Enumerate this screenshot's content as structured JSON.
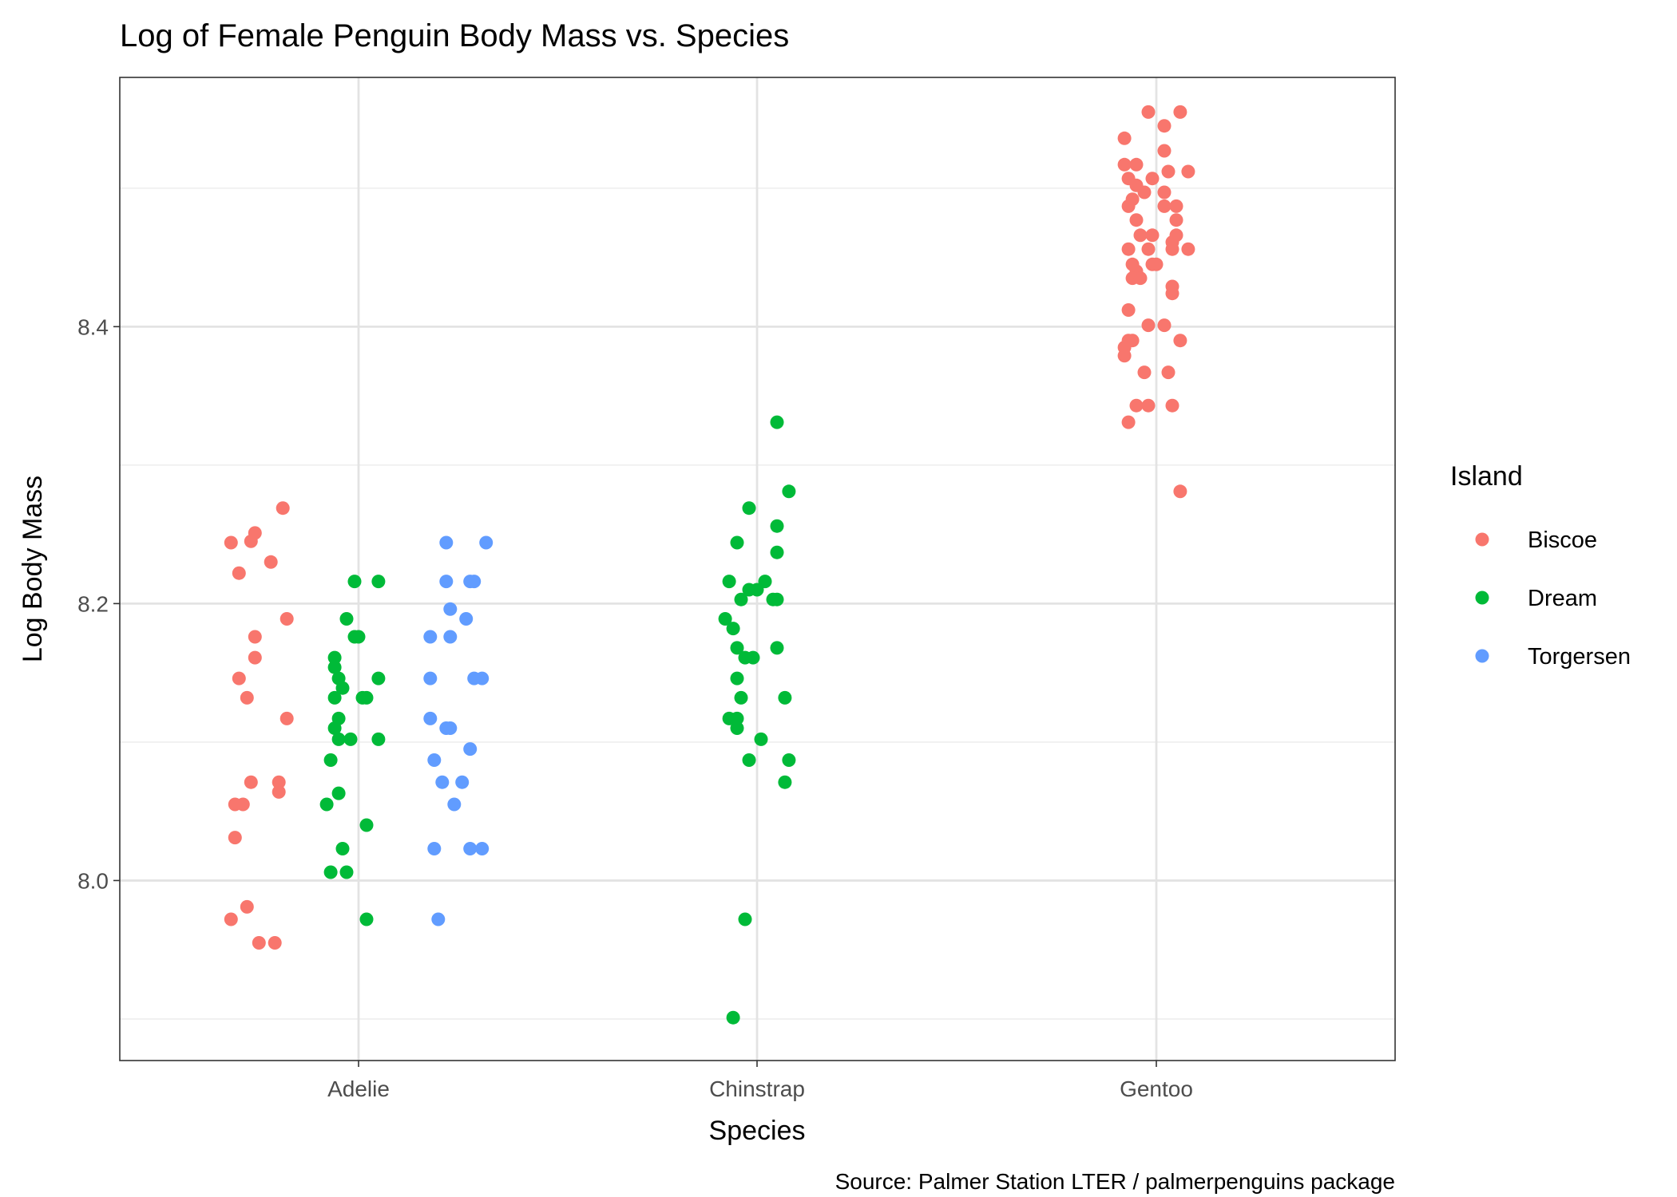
{
  "chart_data": {
    "type": "scatter",
    "title": "Log of Female Penguin Body Mass vs. Species",
    "xlabel": "Species",
    "ylabel": "Log Body Mass",
    "caption": "Source: Palmer Station LTER / palmerpenguins package",
    "categories": [
      "Adelie",
      "Chinstrap",
      "Gentoo"
    ],
    "y_ticks": [
      "8.0",
      "8.2",
      "8.4"
    ],
    "ylim": [
      7.87,
      8.58
    ],
    "grid": true,
    "legend": {
      "title": "Island",
      "position": "right"
    },
    "series": [
      {
        "name": "Biscoe",
        "color": "#F8766D",
        "points": [
          [
            "Adelie",
            8.244,
            -0.32
          ],
          [
            "Adelie",
            8.251,
            -0.26
          ],
          [
            "Adelie",
            8.245,
            -0.27
          ],
          [
            "Adelie",
            8.269,
            -0.19
          ],
          [
            "Adelie",
            8.23,
            -0.22
          ],
          [
            "Adelie",
            8.222,
            -0.3
          ],
          [
            "Adelie",
            8.189,
            -0.18
          ],
          [
            "Adelie",
            8.176,
            -0.26
          ],
          [
            "Adelie",
            8.161,
            -0.26
          ],
          [
            "Adelie",
            8.146,
            -0.3
          ],
          [
            "Adelie",
            8.132,
            -0.28
          ],
          [
            "Adelie",
            8.117,
            -0.18
          ],
          [
            "Adelie",
            8.071,
            -0.27
          ],
          [
            "Adelie",
            8.071,
            -0.2
          ],
          [
            "Adelie",
            8.064,
            -0.2
          ],
          [
            "Adelie",
            8.055,
            -0.31
          ],
          [
            "Adelie",
            8.055,
            -0.29
          ],
          [
            "Adelie",
            8.031,
            -0.31
          ],
          [
            "Adelie",
            7.981,
            -0.28
          ],
          [
            "Adelie",
            7.972,
            -0.32
          ],
          [
            "Adelie",
            7.955,
            -0.25
          ],
          [
            "Adelie",
            7.955,
            -0.21
          ],
          [
            "Gentoo",
            8.555,
            -0.02
          ],
          [
            "Gentoo",
            8.555,
            0.06
          ],
          [
            "Gentoo",
            8.545,
            0.02
          ],
          [
            "Gentoo",
            8.536,
            -0.08
          ],
          [
            "Gentoo",
            8.527,
            0.02
          ],
          [
            "Gentoo",
            8.517,
            -0.05
          ],
          [
            "Gentoo",
            8.517,
            -0.08
          ],
          [
            "Gentoo",
            8.512,
            0.03
          ],
          [
            "Gentoo",
            8.512,
            0.08
          ],
          [
            "Gentoo",
            8.507,
            -0.07
          ],
          [
            "Gentoo",
            8.507,
            -0.01
          ],
          [
            "Gentoo",
            8.502,
            -0.05
          ],
          [
            "Gentoo",
            8.497,
            -0.03
          ],
          [
            "Gentoo",
            8.497,
            0.02
          ],
          [
            "Gentoo",
            8.492,
            -0.06
          ],
          [
            "Gentoo",
            8.487,
            -0.07
          ],
          [
            "Gentoo",
            8.487,
            0.02
          ],
          [
            "Gentoo",
            8.487,
            0.05
          ],
          [
            "Gentoo",
            8.477,
            -0.05
          ],
          [
            "Gentoo",
            8.477,
            0.05
          ],
          [
            "Gentoo",
            8.466,
            -0.04
          ],
          [
            "Gentoo",
            8.466,
            -0.01
          ],
          [
            "Gentoo",
            8.466,
            0.05
          ],
          [
            "Gentoo",
            8.461,
            0.04
          ],
          [
            "Gentoo",
            8.456,
            -0.07
          ],
          [
            "Gentoo",
            8.456,
            -0.02
          ],
          [
            "Gentoo",
            8.456,
            0.04
          ],
          [
            "Gentoo",
            8.456,
            0.08
          ],
          [
            "Gentoo",
            8.445,
            -0.06
          ],
          [
            "Gentoo",
            8.445,
            -0.01
          ],
          [
            "Gentoo",
            8.445,
            0.0
          ],
          [
            "Gentoo",
            8.44,
            -0.05
          ],
          [
            "Gentoo",
            8.435,
            -0.06
          ],
          [
            "Gentoo",
            8.435,
            -0.04
          ],
          [
            "Gentoo",
            8.429,
            0.04
          ],
          [
            "Gentoo",
            8.424,
            0.04
          ],
          [
            "Gentoo",
            8.412,
            -0.07
          ],
          [
            "Gentoo",
            8.401,
            -0.02
          ],
          [
            "Gentoo",
            8.401,
            0.02
          ],
          [
            "Gentoo",
            8.39,
            -0.07
          ],
          [
            "Gentoo",
            8.39,
            -0.06
          ],
          [
            "Gentoo",
            8.39,
            0.06
          ],
          [
            "Gentoo",
            8.385,
            -0.08
          ],
          [
            "Gentoo",
            8.379,
            -0.08
          ],
          [
            "Gentoo",
            8.367,
            -0.03
          ],
          [
            "Gentoo",
            8.367,
            0.03
          ],
          [
            "Gentoo",
            8.343,
            -0.05
          ],
          [
            "Gentoo",
            8.343,
            -0.02
          ],
          [
            "Gentoo",
            8.343,
            0.04
          ],
          [
            "Gentoo",
            8.331,
            -0.07
          ],
          [
            "Gentoo",
            8.281,
            0.06
          ]
        ]
      },
      {
        "name": "Dream",
        "color": "#00BA38",
        "points": [
          [
            "Adelie",
            8.216,
            -0.01
          ],
          [
            "Adelie",
            8.216,
            0.05
          ],
          [
            "Adelie",
            8.189,
            -0.03
          ],
          [
            "Adelie",
            8.176,
            -0.01
          ],
          [
            "Adelie",
            8.176,
            0.0
          ],
          [
            "Adelie",
            8.161,
            -0.06
          ],
          [
            "Adelie",
            8.154,
            -0.06
          ],
          [
            "Adelie",
            8.146,
            -0.05
          ],
          [
            "Adelie",
            8.146,
            0.05
          ],
          [
            "Adelie",
            8.139,
            -0.04
          ],
          [
            "Adelie",
            8.132,
            -0.06
          ],
          [
            "Adelie",
            8.132,
            0.01
          ],
          [
            "Adelie",
            8.132,
            0.02
          ],
          [
            "Adelie",
            8.117,
            -0.05
          ],
          [
            "Adelie",
            8.11,
            -0.06
          ],
          [
            "Adelie",
            8.102,
            -0.05
          ],
          [
            "Adelie",
            8.102,
            -0.02
          ],
          [
            "Adelie",
            8.102,
            0.05
          ],
          [
            "Adelie",
            8.087,
            -0.07
          ],
          [
            "Adelie",
            8.063,
            -0.05
          ],
          [
            "Adelie",
            8.055,
            -0.08
          ],
          [
            "Adelie",
            8.04,
            0.02
          ],
          [
            "Adelie",
            8.023,
            -0.04
          ],
          [
            "Adelie",
            8.006,
            -0.07
          ],
          [
            "Adelie",
            8.006,
            -0.03
          ],
          [
            "Adelie",
            7.972,
            0.02
          ],
          [
            "Chinstrap",
            8.331,
            0.05
          ],
          [
            "Chinstrap",
            8.281,
            0.08
          ],
          [
            "Chinstrap",
            8.269,
            -0.02
          ],
          [
            "Chinstrap",
            8.256,
            0.05
          ],
          [
            "Chinstrap",
            8.244,
            -0.05
          ],
          [
            "Chinstrap",
            8.237,
            0.05
          ],
          [
            "Chinstrap",
            8.216,
            -0.07
          ],
          [
            "Chinstrap",
            8.216,
            0.02
          ],
          [
            "Chinstrap",
            8.21,
            -0.02
          ],
          [
            "Chinstrap",
            8.21,
            0.0
          ],
          [
            "Chinstrap",
            8.203,
            -0.04
          ],
          [
            "Chinstrap",
            8.203,
            0.04
          ],
          [
            "Chinstrap",
            8.203,
            0.05
          ],
          [
            "Chinstrap",
            8.189,
            -0.08
          ],
          [
            "Chinstrap",
            8.182,
            -0.06
          ],
          [
            "Chinstrap",
            8.168,
            -0.05
          ],
          [
            "Chinstrap",
            8.168,
            0.05
          ],
          [
            "Chinstrap",
            8.161,
            -0.03
          ],
          [
            "Chinstrap",
            8.161,
            -0.01
          ],
          [
            "Chinstrap",
            8.146,
            -0.05
          ],
          [
            "Chinstrap",
            8.132,
            -0.04
          ],
          [
            "Chinstrap",
            8.132,
            0.07
          ],
          [
            "Chinstrap",
            8.117,
            -0.07
          ],
          [
            "Chinstrap",
            8.117,
            -0.05
          ],
          [
            "Chinstrap",
            8.11,
            -0.05
          ],
          [
            "Chinstrap",
            8.102,
            0.01
          ],
          [
            "Chinstrap",
            8.087,
            -0.02
          ],
          [
            "Chinstrap",
            8.087,
            0.08
          ],
          [
            "Chinstrap",
            8.071,
            0.07
          ],
          [
            "Chinstrap",
            7.972,
            -0.03
          ],
          [
            "Chinstrap",
            7.901,
            -0.06
          ]
        ]
      },
      {
        "name": "Torgersen",
        "color": "#619CFF",
        "points": [
          [
            "Adelie",
            8.244,
            0.22
          ],
          [
            "Adelie",
            8.244,
            0.32
          ],
          [
            "Adelie",
            8.216,
            0.22
          ],
          [
            "Adelie",
            8.216,
            0.28
          ],
          [
            "Adelie",
            8.216,
            0.29
          ],
          [
            "Adelie",
            8.196,
            0.23
          ],
          [
            "Adelie",
            8.189,
            0.27
          ],
          [
            "Adelie",
            8.176,
            0.18
          ],
          [
            "Adelie",
            8.176,
            0.23
          ],
          [
            "Adelie",
            8.146,
            0.18
          ],
          [
            "Adelie",
            8.146,
            0.29
          ],
          [
            "Adelie",
            8.146,
            0.31
          ],
          [
            "Adelie",
            8.117,
            0.18
          ],
          [
            "Adelie",
            8.11,
            0.22
          ],
          [
            "Adelie",
            8.11,
            0.23
          ],
          [
            "Adelie",
            8.095,
            0.28
          ],
          [
            "Adelie",
            8.087,
            0.19
          ],
          [
            "Adelie",
            8.071,
            0.21
          ],
          [
            "Adelie",
            8.071,
            0.26
          ],
          [
            "Adelie",
            8.055,
            0.24
          ],
          [
            "Adelie",
            8.023,
            0.19
          ],
          [
            "Adelie",
            8.023,
            0.28
          ],
          [
            "Adelie",
            8.023,
            0.31
          ],
          [
            "Adelie",
            7.972,
            0.2
          ]
        ]
      }
    ]
  }
}
